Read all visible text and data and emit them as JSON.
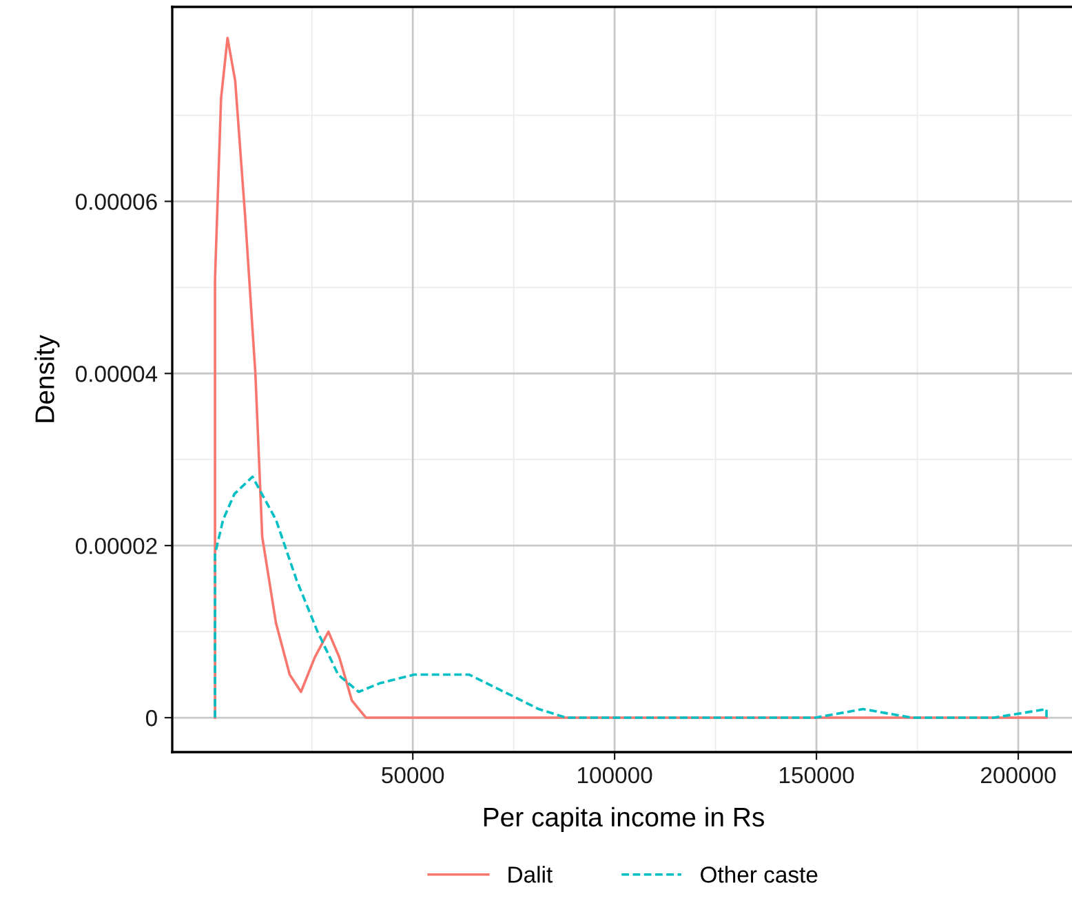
{
  "chart_data": {
    "type": "line",
    "xlabel": "Per capita income in Rs",
    "ylabel": "Density",
    "xlim": [
      -9600,
      214000
    ],
    "ylim": [
      -4e-06,
      8.26e-05
    ],
    "xticks": [
      50000,
      100000,
      150000,
      200000
    ],
    "yticks": [
      0,
      {
        "value": 2e-05,
        "label": "0.00002"
      },
      {
        "value": 4e-05,
        "label": "0.00004"
      },
      {
        "value": 6e-05,
        "label": "0.00006"
      }
    ],
    "grid": true,
    "legend": "bottom",
    "series": [
      {
        "name": "Dalit",
        "color": "#f8766d",
        "line_style": "solid",
        "x": [
          1000,
          1000,
          2500,
          4100,
          6000,
          8500,
          11000,
          12700,
          16100,
          19500,
          22300,
          25700,
          29100,
          31800,
          34900,
          38400,
          45000,
          207000
        ],
        "values": [
          0,
          5.1e-05,
          7.2e-05,
          7.9e-05,
          7.4e-05,
          5.8e-05,
          4e-05,
          2.1e-05,
          1.1e-05,
          5e-06,
          3e-06,
          7e-06,
          1e-05,
          7e-06,
          2e-06,
          0,
          0,
          0
        ]
      },
      {
        "name": "Other caste",
        "color": "#00bfc4",
        "line_style": "dashed",
        "x": [
          1000,
          1000,
          3000,
          5800,
          10300,
          16100,
          21200,
          26400,
          31500,
          36600,
          41800,
          50300,
          56500,
          64000,
          72600,
          81200,
          88000,
          100000,
          132500,
          149700,
          161600,
          173600,
          184000,
          194000,
          207000,
          207000
        ],
        "values": [
          0,
          1.9e-05,
          2.3e-05,
          2.6e-05,
          2.8e-05,
          2.3e-05,
          1.6e-05,
          1e-05,
          5e-06,
          3e-06,
          4e-06,
          5e-06,
          5e-06,
          5e-06,
          3e-06,
          1e-06,
          0,
          0,
          0,
          0,
          1e-06,
          0,
          0,
          0,
          1e-06,
          0
        ]
      }
    ]
  }
}
